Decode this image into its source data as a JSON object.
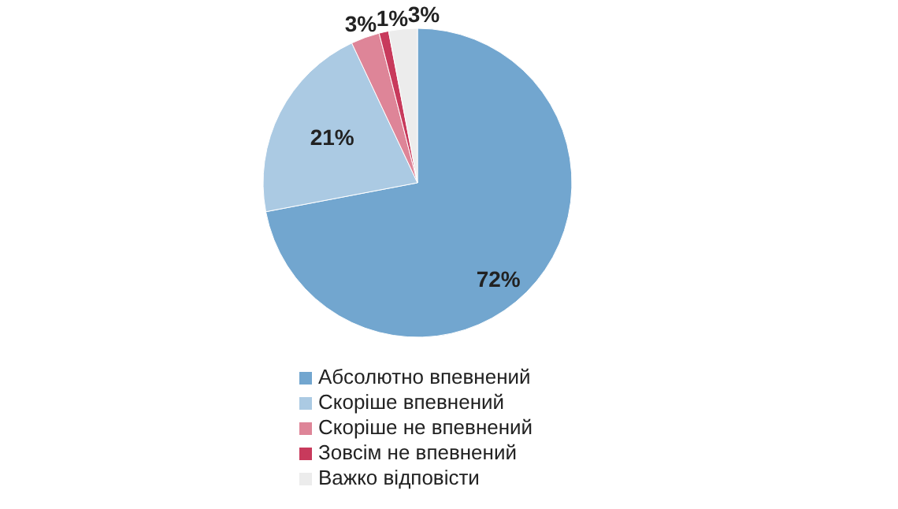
{
  "chart_data": {
    "type": "pie",
    "categories": [
      "Абсолютно впевнений",
      "Скоріше впевнений",
      "Скоріше не впевнений",
      "Зовсім не впевнений",
      "Важко відповісти"
    ],
    "values": [
      72,
      21,
      3,
      1,
      3
    ],
    "colors": [
      "#72a6cf",
      "#abcae3",
      "#de8598",
      "#c83a5c",
      "#ececec"
    ],
    "value_labels": [
      "72%",
      "21%",
      "3%",
      "1%",
      "3%"
    ],
    "legend": "bottom"
  }
}
